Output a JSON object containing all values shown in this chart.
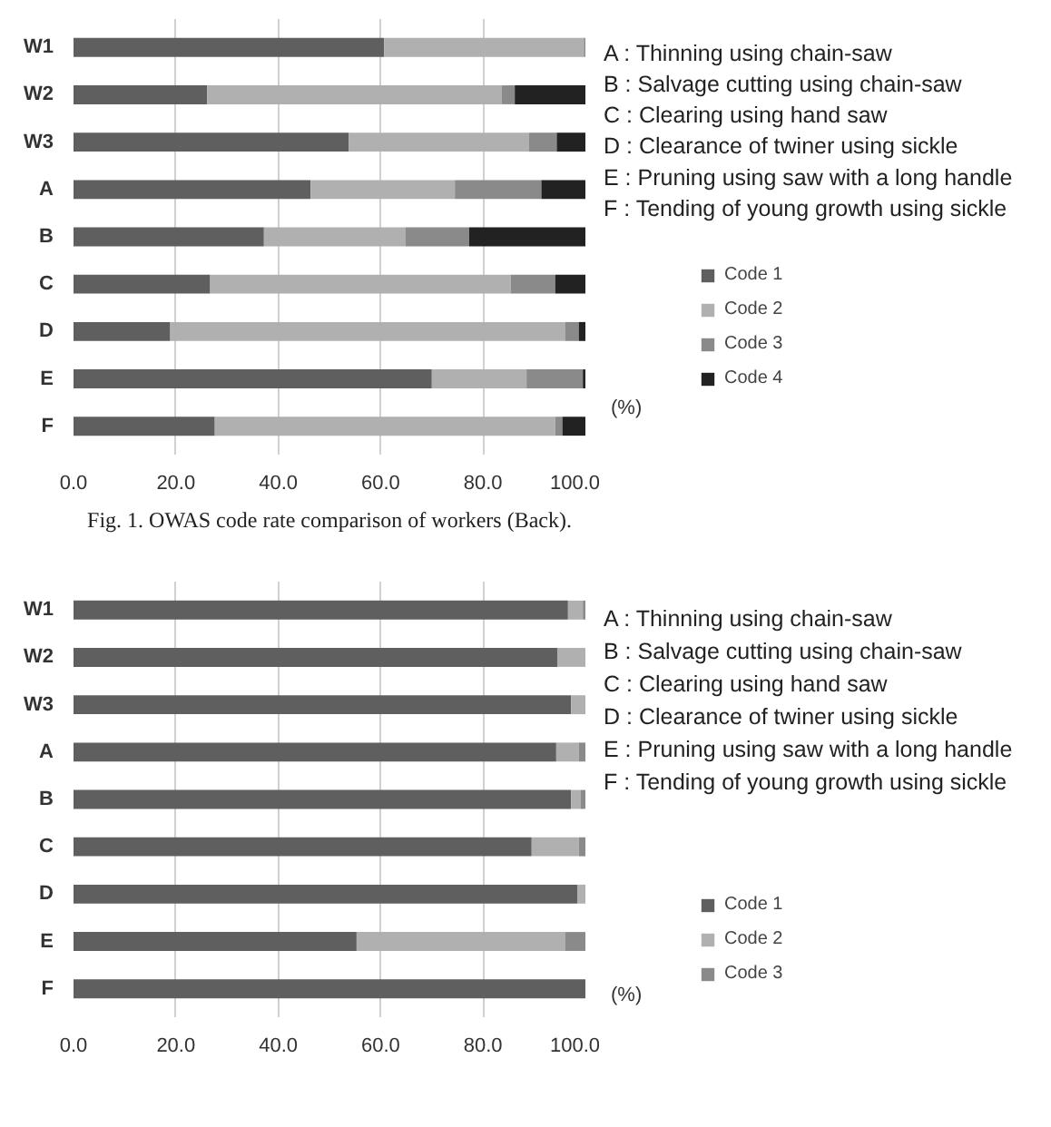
{
  "chart_data": [
    {
      "type": "bar",
      "orientation": "horizontal",
      "stacked": true,
      "title": "Fig. 1. OWAS code rate comparison of workers (Back).",
      "xlabel": "(%)",
      "categories": [
        "W1",
        "W2",
        "W3",
        "A",
        "B",
        "C",
        "D",
        "E",
        "F"
      ],
      "series": [
        {
          "name": "Code 1",
          "color": "#5f5f5f",
          "values": [
            60.7,
            26.1,
            53.8,
            46.3,
            37.2,
            26.7,
            18.9,
            70.0,
            27.6
          ]
        },
        {
          "name": "Code 2",
          "color": "#b0b0b0",
          "values": [
            39.0,
            57.5,
            35.2,
            28.2,
            27.6,
            58.7,
            77.1,
            18.5,
            66.5
          ]
        },
        {
          "name": "Code 3",
          "color": "#8a8a8a",
          "values": [
            0.3,
            2.6,
            5.4,
            16.9,
            12.5,
            8.7,
            2.7,
            11.0,
            1.4
          ]
        },
        {
          "name": "Code 4",
          "color": "#222222",
          "values": [
            0,
            13.8,
            5.6,
            8.6,
            22.7,
            5.9,
            1.3,
            0.5,
            4.5
          ]
        }
      ],
      "xlim": [
        0,
        100
      ],
      "xticks": [
        {
          "value": 0,
          "label": "0.0"
        },
        {
          "value": 20,
          "label": "20.0"
        },
        {
          "value": 40,
          "label": "40.0"
        },
        {
          "value": 60,
          "label": "60.0"
        },
        {
          "value": 80,
          "label": "80.0"
        },
        {
          "value": 100,
          "label": "100.0"
        }
      ],
      "grid": "x",
      "legend": "right",
      "annotations": [
        "A : Thinning  using  chain-saw",
        "B : Salvage cutting using chain-saw",
        "C : Clearing using  hand saw",
        "D : Clearance of twiner using sickle",
        "E : Pruning using saw with a long handle",
        "F : Tending of young growth using sickle"
      ]
    },
    {
      "type": "bar",
      "orientation": "horizontal",
      "stacked": true,
      "xlabel": "(%)",
      "categories": [
        "W1",
        "W2",
        "W3",
        "A",
        "B",
        "C",
        "D",
        "E",
        "F"
      ],
      "series": [
        {
          "name": "Code 1",
          "color": "#5f5f5f",
          "values": [
            96.6,
            94.5,
            97.2,
            94.3,
            97.2,
            89.5,
            98.4,
            55.3,
            100
          ]
        },
        {
          "name": "Code 2",
          "color": "#b0b0b0",
          "values": [
            2.9,
            5.5,
            2.8,
            4.4,
            1.9,
            9.2,
            1.6,
            40.8,
            0
          ]
        },
        {
          "name": "Code 3",
          "color": "#8a8a8a",
          "values": [
            0.5,
            0,
            0,
            1.3,
            0.9,
            1.3,
            0,
            3.9,
            0
          ]
        }
      ],
      "xlim": [
        0,
        100
      ],
      "xticks": [
        {
          "value": 0,
          "label": "0.0"
        },
        {
          "value": 20,
          "label": "20.0"
        },
        {
          "value": 40,
          "label": "40.0"
        },
        {
          "value": 60,
          "label": "60.0"
        },
        {
          "value": 80,
          "label": "80.0"
        },
        {
          "value": 100,
          "label": "100.0"
        }
      ],
      "grid": "x",
      "legend": "right",
      "annotations": [
        "A : Thinning using chain-saw",
        "B : Salvage cutting using chain-saw",
        "C : Clearing using hand saw",
        "D : Clearance of twiner using sickle",
        "E : Pruning using saw with a long handle",
        "F : Tending of young growth using sickle"
      ]
    }
  ]
}
